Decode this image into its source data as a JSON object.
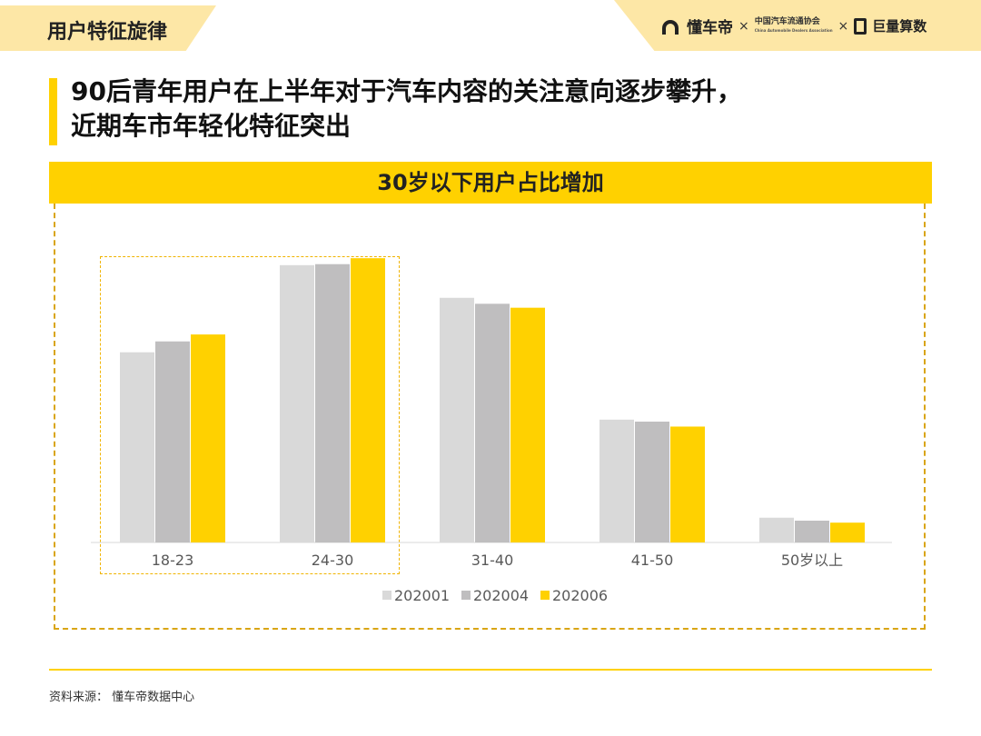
{
  "section_tab": "用户特征旋律",
  "brand": {
    "dcd": "懂车帝",
    "times1": "×",
    "assoc": "中国汽车流通协会",
    "assoc_sub": "China Automobile Dealers Association",
    "times2": "×",
    "ocean": "巨量算数"
  },
  "headline": {
    "line1": "90后青年用户在上半年对于汽车内容的关注意向逐步攀升，",
    "line2": "近期车市年轻化特征突出"
  },
  "chart_data": {
    "type": "bar",
    "title": "30岁以下用户占比增加",
    "categories": [
      "18-23",
      "24-30",
      "31-40",
      "41-50",
      "50岁以上"
    ],
    "series": [
      {
        "name": "202001",
        "values": [
          19.2,
          28.0,
          24.7,
          12.4,
          2.5
        ],
        "color": "#d9d9d9"
      },
      {
        "name": "202004",
        "values": [
          20.3,
          28.1,
          24.1,
          12.2,
          2.2
        ],
        "color": "#bfbebf"
      },
      {
        "name": "202006",
        "values": [
          21.0,
          28.7,
          23.7,
          11.7,
          2.0
        ],
        "color": "#ffd100"
      }
    ],
    "ylim": [
      0,
      30
    ],
    "grid": false,
    "legend": "bottom"
  },
  "footer": {
    "source": "资料来源：  懂车帝数据中心"
  }
}
